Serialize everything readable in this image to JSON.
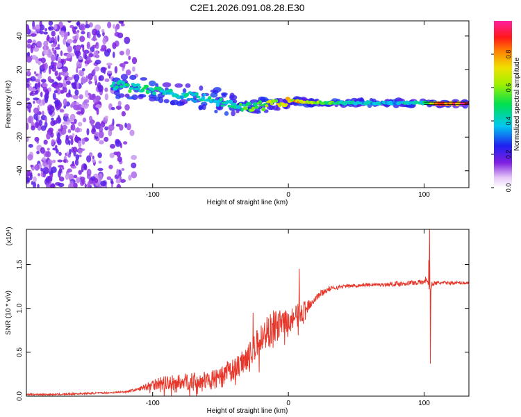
{
  "figure": {
    "title": "C2E1.2026.091.08.28.E30"
  },
  "chart_data": [
    {
      "type": "heatmap",
      "xlabel": "Height of straight line (km)",
      "ylabel": "Frequency (Hz)",
      "xlim": [
        -193,
        133
      ],
      "ylim": [
        -50,
        49
      ],
      "x_ticks": [
        "-100",
        "0",
        "100"
      ],
      "x_tick_values": [
        -100,
        0,
        100
      ],
      "y_ticks": [
        "-40",
        "-20",
        "0",
        "20",
        "40"
      ],
      "y_tick_values": [
        -40,
        -20,
        0,
        20,
        40
      ],
      "colorbar": {
        "label": "Normalized spectral amplitude",
        "range": [
          0,
          1
        ],
        "ticks": [
          "0.0",
          "0.2",
          "0.4",
          "0.6",
          "0.8"
        ],
        "tick_values": [
          0.0,
          0.2,
          0.4,
          0.6,
          0.8
        ],
        "colormap": "rainbow (white-violet-purple-blue-cyan-green-yellow-orange-red-magenta)"
      },
      "ridge": {
        "x": [
          -130,
          -120,
          -110,
          -100,
          -90,
          -80,
          -70,
          -60,
          -50,
          -40,
          -35,
          -30,
          -20,
          -10,
          0,
          10,
          20,
          40,
          60,
          80,
          100,
          110,
          120,
          133
        ],
        "y": [
          11,
          10,
          9,
          8,
          6.5,
          5,
          3.5,
          2.5,
          1,
          -1,
          -2.5,
          -2,
          -1.5,
          0,
          1.5,
          1,
          0.5,
          0.3,
          0.3,
          0.3,
          0.2,
          0,
          0,
          0
        ],
        "amplitude": [
          0.45,
          0.5,
          0.5,
          0.45,
          0.45,
          0.4,
          0.45,
          0.45,
          0.45,
          0.45,
          0.5,
          0.55,
          0.6,
          0.7,
          0.8,
          0.75,
          0.7,
          0.45,
          0.4,
          0.4,
          0.45,
          0.9,
          0.95,
          0.95
        ]
      },
      "noise_region_x": [
        -193,
        -110
      ]
    },
    {
      "type": "line",
      "xlabel": "Height of straight line (km)",
      "ylabel": "SNR (10 * v/v)",
      "y_multiplier": "(x10⁴)",
      "xlim": [
        -193,
        133
      ],
      "ylim": [
        0,
        1.9
      ],
      "x_ticks": [
        "-100",
        "0",
        "100"
      ],
      "x_tick_values": [
        -100,
        0,
        100
      ],
      "y_ticks": [
        "0.0",
        "0.5",
        "1.0",
        "1.5"
      ],
      "y_tick_values": [
        0.0,
        0.5,
        1.0,
        1.5
      ],
      "series": [
        {
          "color": "#e8372a",
          "x": [
            -193,
            -170,
            -150,
            -130,
            -120,
            -110,
            -100,
            -90,
            -80,
            -70,
            -60,
            -50,
            -45,
            -40,
            -35,
            -30,
            -25,
            -20,
            -15,
            -10,
            -5,
            0,
            5,
            10,
            15,
            20,
            25,
            30,
            40,
            50,
            60,
            70,
            80,
            90,
            100,
            102,
            104,
            106,
            110,
            120,
            133
          ],
          "y": [
            0.02,
            0.02,
            0.03,
            0.04,
            0.05,
            0.08,
            0.14,
            0.15,
            0.16,
            0.17,
            0.18,
            0.2,
            0.27,
            0.3,
            0.38,
            0.46,
            0.55,
            0.65,
            0.75,
            0.8,
            0.82,
            0.85,
            0.9,
            0.95,
            1.05,
            1.12,
            1.18,
            1.22,
            1.25,
            1.26,
            1.27,
            1.27,
            1.28,
            1.29,
            1.3,
            1.35,
            1.2,
            1.28,
            1.29,
            1.29,
            1.29
          ],
          "noise_amplitude": [
            0.01,
            0.01,
            0.01,
            0.01,
            0.01,
            0.02,
            0.07,
            0.08,
            0.09,
            0.1,
            0.1,
            0.12,
            0.13,
            0.13,
            0.14,
            0.15,
            0.16,
            0.18,
            0.2,
            0.2,
            0.15,
            0.14,
            0.14,
            0.12,
            0.07,
            0.05,
            0.04,
            0.03,
            0.02,
            0.02,
            0.02,
            0.02,
            0.03,
            0.03,
            0.03,
            0.05,
            0.05,
            0.03,
            0.02,
            0.02,
            0.02
          ],
          "spikes": [
            [
              -26,
              0.95
            ],
            [
              8,
              1.45
            ],
            [
              104,
              1.93
            ],
            [
              104.6,
              0.37
            ],
            [
              103.4,
              1.55
            ]
          ]
        }
      ]
    }
  ]
}
